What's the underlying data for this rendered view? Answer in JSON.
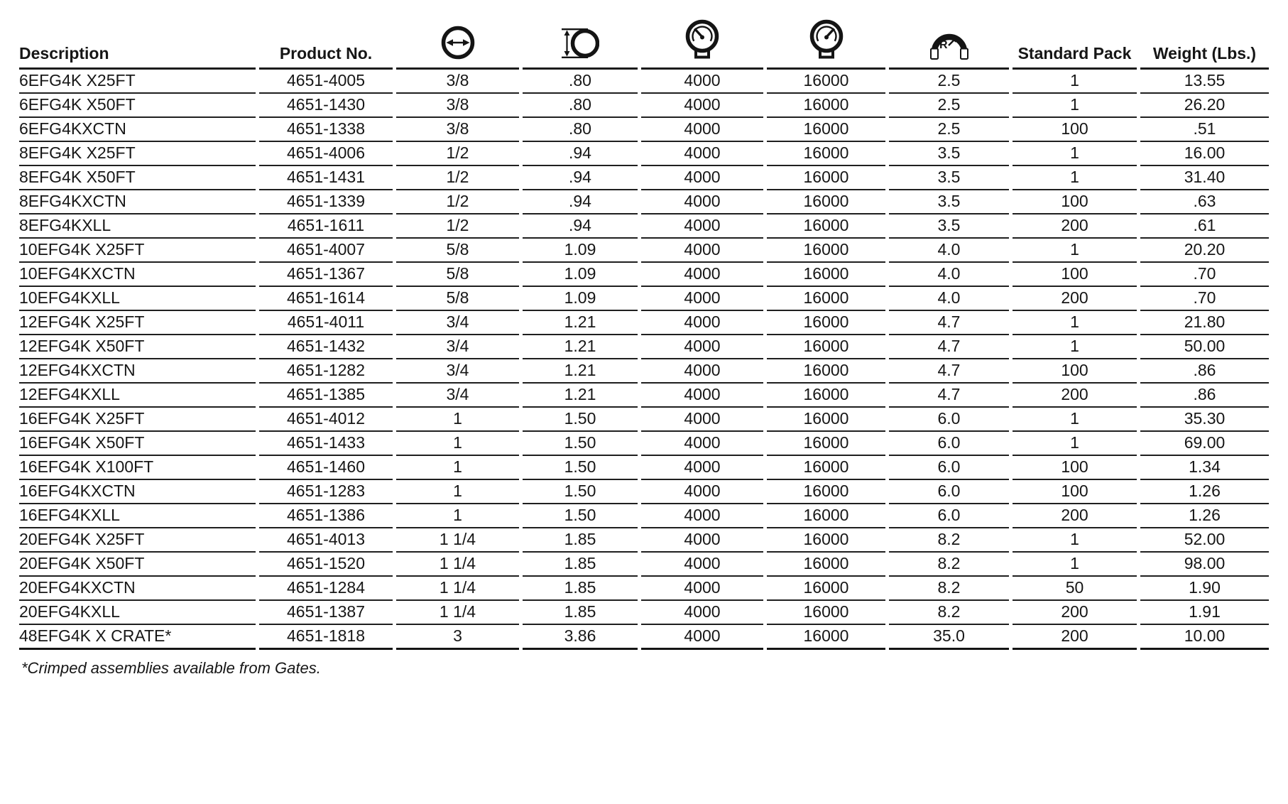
{
  "page": {
    "background": "#ffffff",
    "text_color": "#161616",
    "line_color": "#1b1b1b"
  },
  "table": {
    "headers": {
      "description": "Description",
      "product_no": "Product No.",
      "standard_pack": "Standard Pack",
      "weight_lbs": "Weight (Lbs.)"
    },
    "icon_columns": [
      "inner-diameter-icon",
      "outer-diameter-icon",
      "working-pressure-gauge-icon",
      "burst-pressure-gauge-icon",
      "bend-radius-icon"
    ],
    "column_keys": [
      "description",
      "product_no",
      "inner_diameter",
      "outer_diameter",
      "working_pressure",
      "burst_pressure",
      "bend_radius",
      "standard_pack",
      "weight_lbs"
    ],
    "rows": [
      [
        "6EFG4K X25FT",
        "4651-4005",
        "3/8",
        ".80",
        "4000",
        "16000",
        "2.5",
        "1",
        "13.55"
      ],
      [
        "6EFG4K X50FT",
        "4651-1430",
        "3/8",
        ".80",
        "4000",
        "16000",
        "2.5",
        "1",
        "26.20"
      ],
      [
        "6EFG4KXCTN",
        "4651-1338",
        "3/8",
        ".80",
        "4000",
        "16000",
        "2.5",
        "100",
        ".51"
      ],
      [
        "8EFG4K X25FT",
        "4651-4006",
        "1/2",
        ".94",
        "4000",
        "16000",
        "3.5",
        "1",
        "16.00"
      ],
      [
        "8EFG4K X50FT",
        "4651-1431",
        "1/2",
        ".94",
        "4000",
        "16000",
        "3.5",
        "1",
        "31.40"
      ],
      [
        "8EFG4KXCTN",
        "4651-1339",
        "1/2",
        ".94",
        "4000",
        "16000",
        "3.5",
        "100",
        ".63"
      ],
      [
        "8EFG4KXLL",
        "4651-1611",
        "1/2",
        ".94",
        "4000",
        "16000",
        "3.5",
        "200",
        ".61"
      ],
      [
        "10EFG4K X25FT",
        "4651-4007",
        "5/8",
        "1.09",
        "4000",
        "16000",
        "4.0",
        "1",
        "20.20"
      ],
      [
        "10EFG4KXCTN",
        "4651-1367",
        "5/8",
        "1.09",
        "4000",
        "16000",
        "4.0",
        "100",
        ".70"
      ],
      [
        "10EFG4KXLL",
        "4651-1614",
        "5/8",
        "1.09",
        "4000",
        "16000",
        "4.0",
        "200",
        ".70"
      ],
      [
        "12EFG4K X25FT",
        "4651-4011",
        "3/4",
        "1.21",
        "4000",
        "16000",
        "4.7",
        "1",
        "21.80"
      ],
      [
        "12EFG4K X50FT",
        "4651-1432",
        "3/4",
        "1.21",
        "4000",
        "16000",
        "4.7",
        "1",
        "50.00"
      ],
      [
        "12EFG4KXCTN",
        "4651-1282",
        "3/4",
        "1.21",
        "4000",
        "16000",
        "4.7",
        "100",
        ".86"
      ],
      [
        "12EFG4KXLL",
        "4651-1385",
        "3/4",
        "1.21",
        "4000",
        "16000",
        "4.7",
        "200",
        ".86"
      ],
      [
        "16EFG4K X25FT",
        "4651-4012",
        "1",
        "1.50",
        "4000",
        "16000",
        "6.0",
        "1",
        "35.30"
      ],
      [
        "16EFG4K X50FT",
        "4651-1433",
        "1",
        "1.50",
        "4000",
        "16000",
        "6.0",
        "1",
        "69.00"
      ],
      [
        "16EFG4K X100FT",
        "4651-1460",
        "1",
        "1.50",
        "4000",
        "16000",
        "6.0",
        "100",
        "1.34"
      ],
      [
        "16EFG4KXCTN",
        "4651-1283",
        "1",
        "1.50",
        "4000",
        "16000",
        "6.0",
        "100",
        "1.26"
      ],
      [
        "16EFG4KXLL",
        "4651-1386",
        "1",
        "1.50",
        "4000",
        "16000",
        "6.0",
        "200",
        "1.26"
      ],
      [
        "20EFG4K X25FT",
        "4651-4013",
        "1 1/4",
        "1.85",
        "4000",
        "16000",
        "8.2",
        "1",
        "52.00"
      ],
      [
        "20EFG4K X50FT",
        "4651-1520",
        "1 1/4",
        "1.85",
        "4000",
        "16000",
        "8.2",
        "1",
        "98.00"
      ],
      [
        "20EFG4KXCTN",
        "4651-1284",
        "1 1/4",
        "1.85",
        "4000",
        "16000",
        "8.2",
        "50",
        "1.90"
      ],
      [
        "20EFG4KXLL",
        "4651-1387",
        "1 1/4",
        "1.85",
        "4000",
        "16000",
        "8.2",
        "200",
        "1.91"
      ],
      [
        "48EFG4K X CRATE*",
        "4651-1818",
        "3",
        "3.86",
        "4000",
        "16000",
        "35.0",
        "200",
        "10.00"
      ]
    ],
    "footnote": "*Crimped assemblies available from Gates."
  }
}
